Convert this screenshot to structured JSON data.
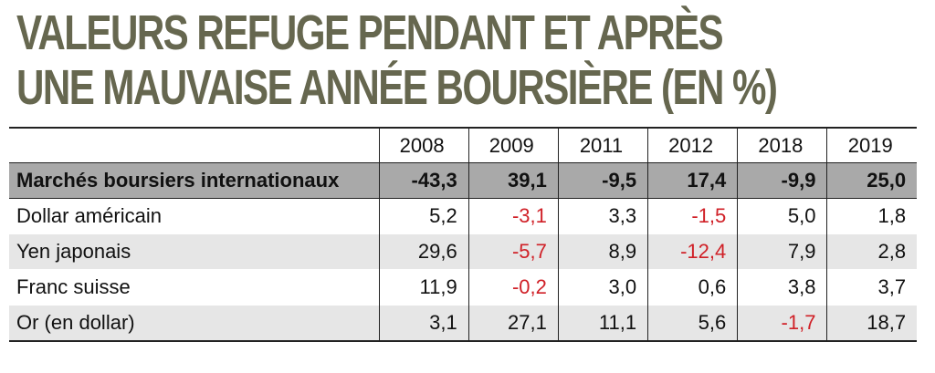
{
  "title": {
    "line1": "VALEURS REFUGE PENDANT ET APRÈS",
    "line2": "UNE MAUVAISE ANNÉE BOURSIÈRE (EN %)"
  },
  "table": {
    "years": [
      "2008",
      "2009",
      "2011",
      "2012",
      "2018",
      "2019"
    ],
    "rows": [
      {
        "label": "Marchés boursiers internationaux",
        "values": [
          "-43,3",
          "39,1",
          "-9,5",
          "17,4",
          "-9,9",
          "25,0"
        ]
      },
      {
        "label": "Dollar américain",
        "values": [
          "5,2",
          "-3,1",
          "3,3",
          "-1,5",
          "5,0",
          "1,8"
        ]
      },
      {
        "label": "Yen japonais",
        "values": [
          "29,6",
          "-5,7",
          "8,9",
          "-12,4",
          "7,9",
          "2,8"
        ]
      },
      {
        "label": "Franc suisse",
        "values": [
          "11,9",
          "-0,2",
          "3,0",
          "0,6",
          "3,8",
          "3,7"
        ]
      },
      {
        "label": "Or (en dollar)",
        "values": [
          "3,1",
          "27,1",
          "11,1",
          "5,6",
          "-1,7",
          "18,7"
        ]
      }
    ]
  },
  "colors": {
    "title": "#66674f",
    "negative": "#d02027",
    "highlight_row": "#a9a9a9",
    "alt_row": "#e6e6e6"
  }
}
